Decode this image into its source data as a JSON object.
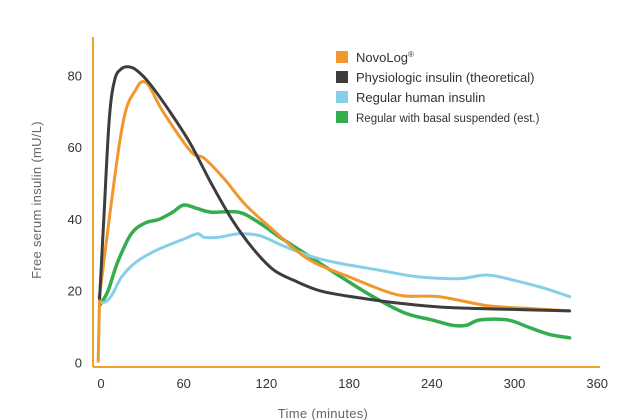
{
  "chart_data": {
    "type": "line",
    "title": "",
    "xlabel": "Time (minutes)",
    "ylabel": "Free serum insulin (mU/L)",
    "xlim": [
      -5,
      365
    ],
    "ylim": [
      0,
      90
    ],
    "x_ticks": [
      0,
      60,
      120,
      180,
      240,
      300,
      360
    ],
    "x_tick_labels": [
      "0",
      "60",
      "120",
      "180",
      "240",
      "300",
      "360"
    ],
    "y_ticks": [
      0,
      20,
      40,
      60,
      80
    ],
    "y_tick_labels": [
      "0",
      "20",
      "40",
      "60",
      "80"
    ],
    "grid": false,
    "legend_position": "top-right",
    "axis_color": "#f0a030",
    "series": [
      {
        "name": "NovoLog",
        "name_superscript": "®",
        "color": "#f0982e",
        "points": [
          [
            -2,
            0.5
          ],
          [
            -1,
            18
          ],
          [
            0,
            22
          ],
          [
            15,
            65
          ],
          [
            25,
            76
          ],
          [
            33,
            78
          ],
          [
            45,
            70
          ],
          [
            65,
            59
          ],
          [
            75,
            57
          ],
          [
            90,
            51
          ],
          [
            105,
            44
          ],
          [
            125,
            37
          ],
          [
            150,
            29
          ],
          [
            180,
            24
          ],
          [
            215,
            19
          ],
          [
            245,
            18.5
          ],
          [
            280,
            16
          ],
          [
            310,
            15.2
          ],
          [
            340,
            14.5
          ]
        ]
      },
      {
        "name": "Physiologic insulin (theoretical)",
        "color": "#3d3d3d",
        "points": [
          [
            -1,
            18
          ],
          [
            2,
            40
          ],
          [
            6,
            68
          ],
          [
            10,
            79
          ],
          [
            15,
            82
          ],
          [
            20,
            82.5
          ],
          [
            26,
            81.5
          ],
          [
            35,
            78
          ],
          [
            50,
            70
          ],
          [
            65,
            61
          ],
          [
            80,
            50
          ],
          [
            95,
            40
          ],
          [
            110,
            32
          ],
          [
            125,
            26
          ],
          [
            140,
            23
          ],
          [
            160,
            20
          ],
          [
            190,
            18
          ],
          [
            220,
            16.5
          ],
          [
            250,
            15.5
          ],
          [
            290,
            15
          ],
          [
            340,
            14.5
          ]
        ]
      },
      {
        "name": "Regular human insulin",
        "color": "#87cfe8",
        "points": [
          [
            -1,
            17
          ],
          [
            3,
            17
          ],
          [
            8,
            19
          ],
          [
            15,
            24
          ],
          [
            25,
            28
          ],
          [
            38,
            31
          ],
          [
            50,
            33
          ],
          [
            60,
            34.5
          ],
          [
            70,
            36
          ],
          [
            75,
            35
          ],
          [
            85,
            35
          ],
          [
            100,
            36
          ],
          [
            115,
            35.5
          ],
          [
            130,
            33
          ],
          [
            150,
            30
          ],
          [
            170,
            28
          ],
          [
            200,
            26
          ],
          [
            230,
            24
          ],
          [
            260,
            23.5
          ],
          [
            280,
            24.5
          ],
          [
            300,
            23
          ],
          [
            320,
            21
          ],
          [
            340,
            18.5
          ]
        ]
      },
      {
        "name": "Regular with basal suspended (est.)",
        "name_small": true,
        "color": "#35ac4f",
        "points": [
          [
            -1,
            16
          ],
          [
            5,
            20
          ],
          [
            12,
            28
          ],
          [
            22,
            36
          ],
          [
            32,
            39
          ],
          [
            42,
            40
          ],
          [
            52,
            42
          ],
          [
            60,
            44
          ],
          [
            70,
            43
          ],
          [
            80,
            42
          ],
          [
            100,
            42
          ],
          [
            115,
            39
          ],
          [
            130,
            35
          ],
          [
            150,
            30
          ],
          [
            170,
            25
          ],
          [
            195,
            19
          ],
          [
            220,
            14
          ],
          [
            240,
            12
          ],
          [
            255,
            10.5
          ],
          [
            265,
            10.5
          ],
          [
            275,
            12
          ],
          [
            295,
            12
          ],
          [
            310,
            10
          ],
          [
            325,
            8
          ],
          [
            340,
            7
          ]
        ]
      }
    ]
  }
}
